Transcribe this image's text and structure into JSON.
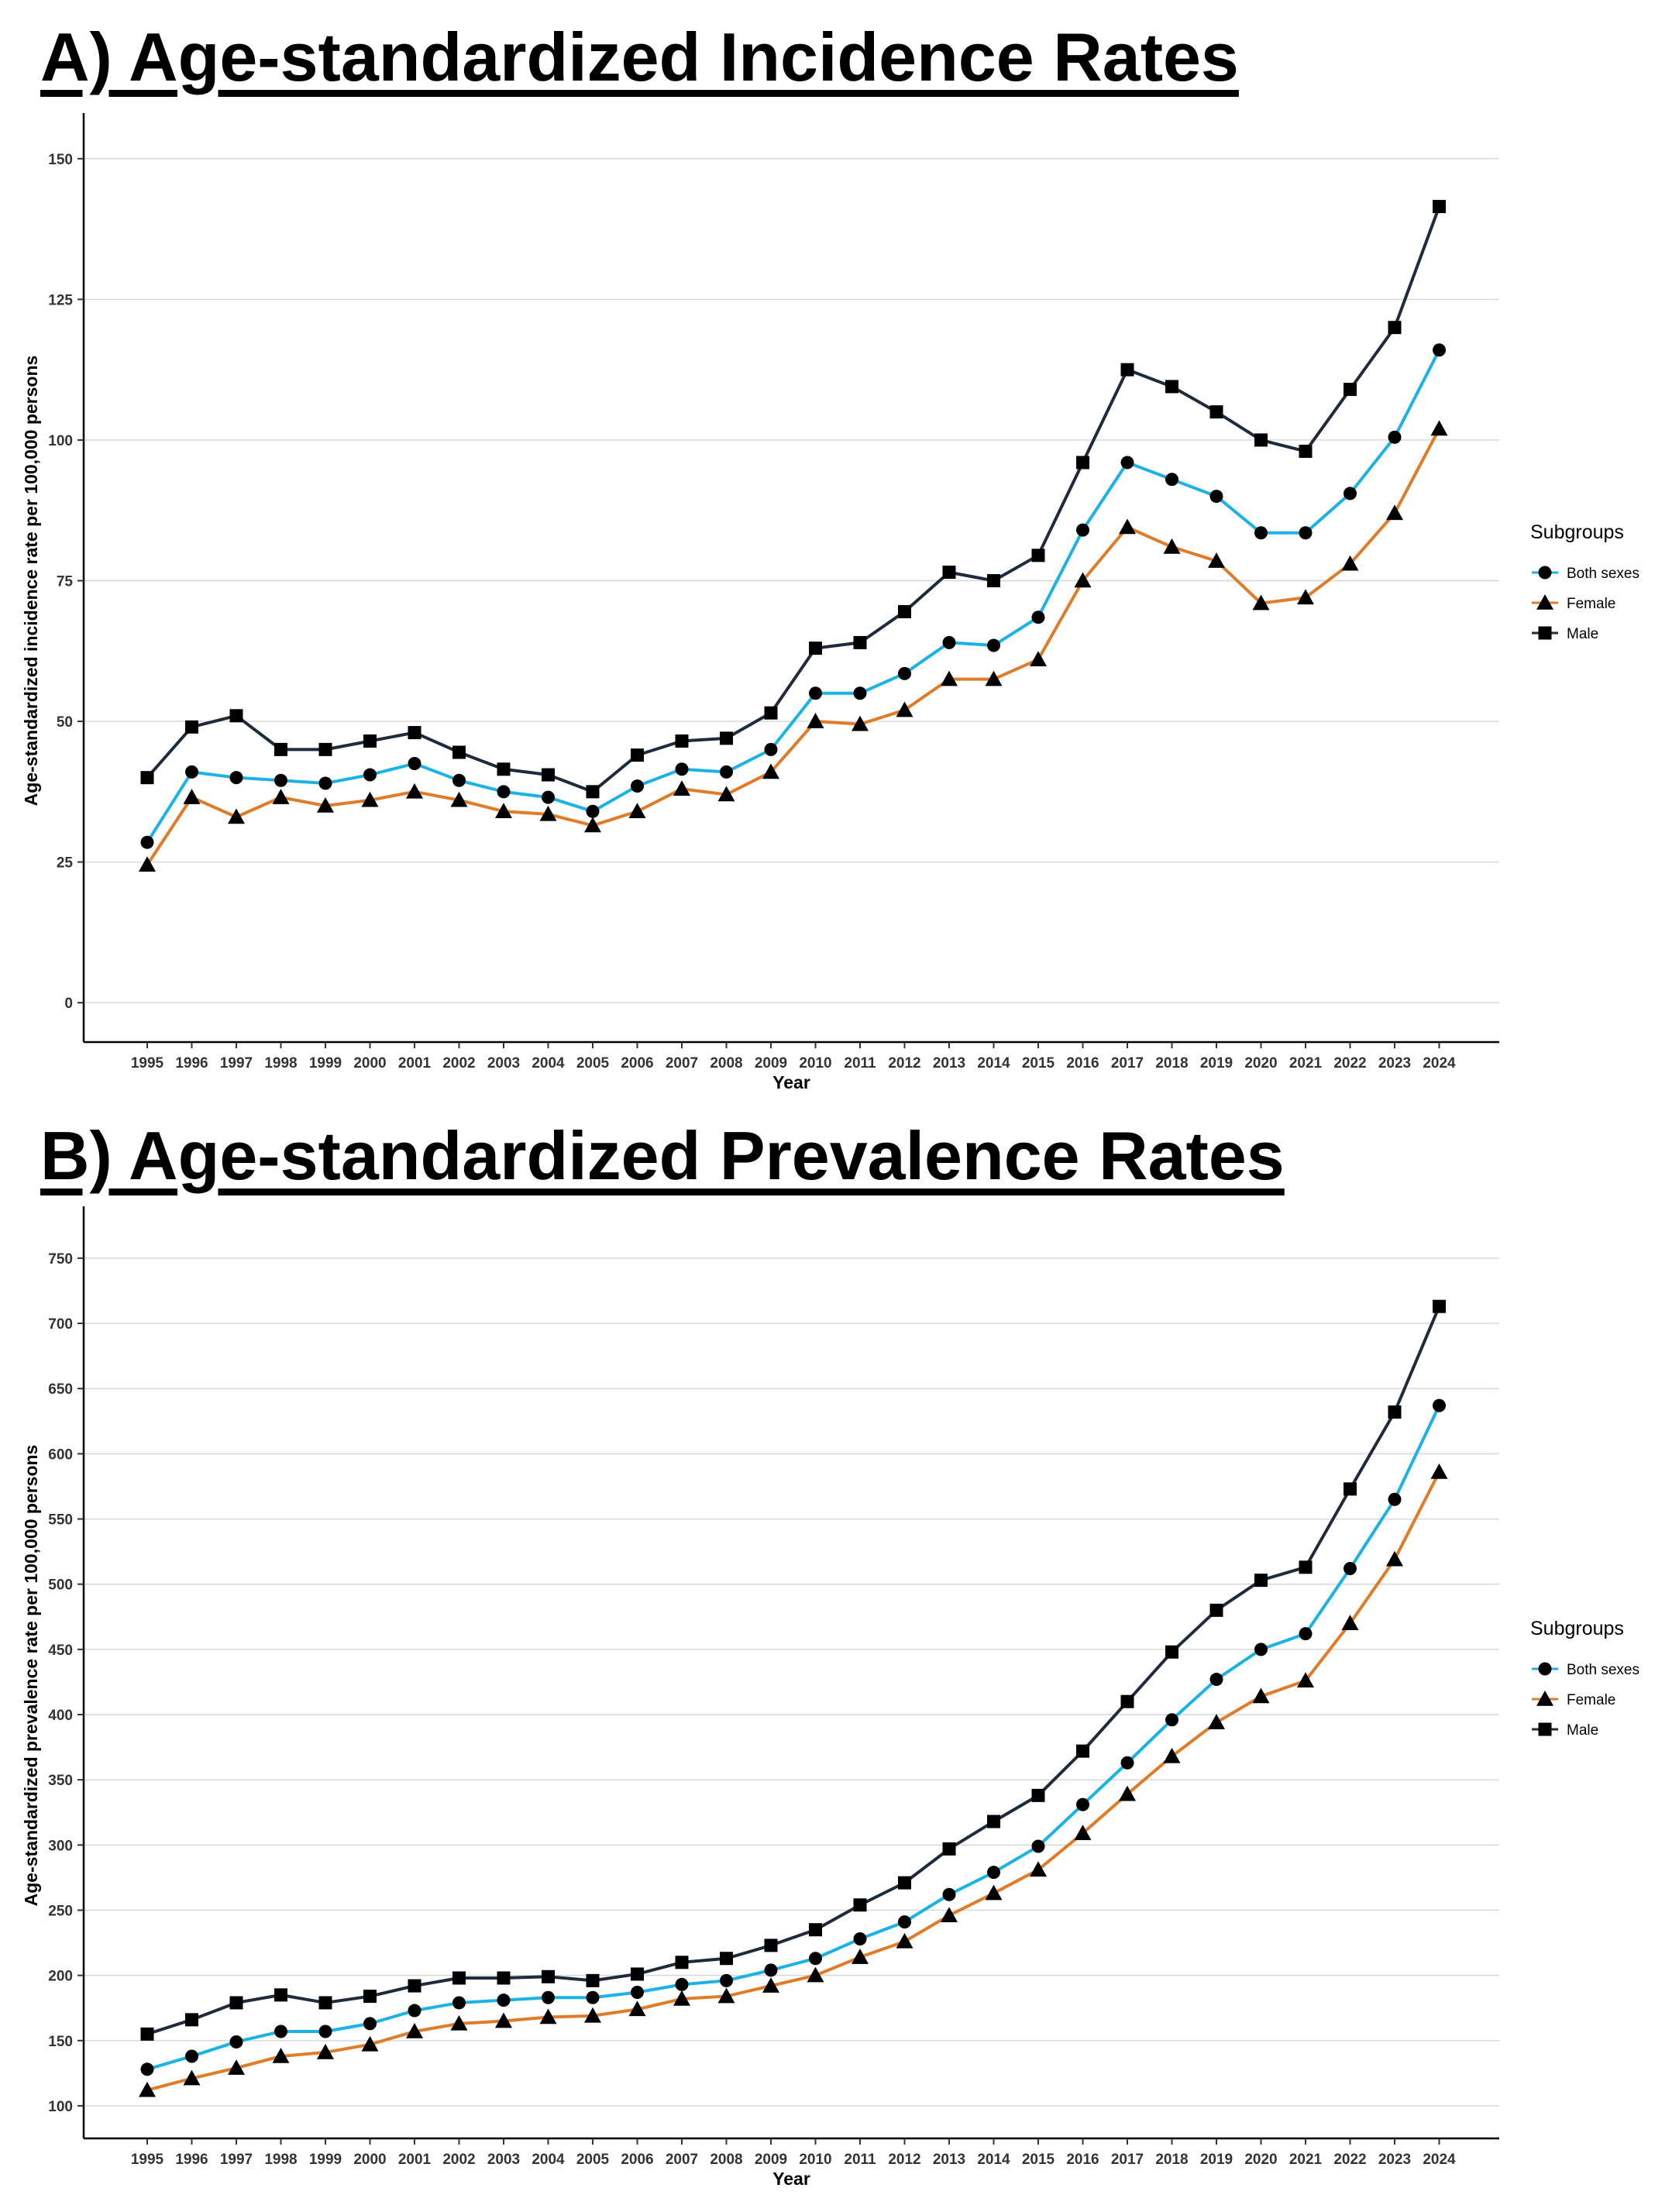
{
  "chart_data": [
    {
      "type": "line",
      "title": "A) Age-standardized Incidence Rates",
      "xlabel": "Year",
      "ylabel": "Age-standardized incidence rate per 100,000 persons",
      "ylim": [
        -7,
        157
      ],
      "yticks": [
        0,
        25,
        50,
        75,
        100,
        125,
        150
      ],
      "grid": true,
      "legend_title": "Subgroups",
      "legend_position": "right",
      "x": [
        "1995",
        "1996",
        "1997",
        "1998",
        "1999",
        "2000",
        "2001",
        "2002",
        "2003",
        "2004",
        "2005",
        "2006",
        "2007",
        "2008",
        "2009",
        "2010",
        "2011",
        "2012",
        "2013",
        "2014",
        "2015",
        "2016",
        "2017",
        "2018",
        "2019",
        "2020",
        "2021",
        "2022",
        "2023",
        "2024"
      ],
      "series": [
        {
          "name": "Both sexes",
          "color": "#1BB3E6",
          "marker": "circle",
          "values": [
            28.5,
            41,
            40,
            39.5,
            39,
            40.5,
            42.5,
            39.5,
            37.5,
            36.5,
            34,
            38.5,
            41.5,
            41,
            45,
            55,
            55,
            58.5,
            64,
            63.5,
            68.5,
            84,
            96,
            93,
            90,
            83.5,
            83.5,
            90.5,
            100.5,
            116
          ]
        },
        {
          "name": "Female",
          "color": "#E07B28",
          "marker": "triangle",
          "values": [
            24.5,
            36.5,
            33,
            36.5,
            35,
            36,
            37.5,
            36,
            34,
            33.5,
            31.5,
            34,
            38,
            37,
            41,
            50,
            49.5,
            52,
            57.5,
            57.5,
            61,
            75,
            84.5,
            81,
            78.5,
            71,
            72,
            78,
            87,
            102
          ]
        },
        {
          "name": "Male",
          "color": "#1E2B3D",
          "marker": "square",
          "values": [
            40,
            49,
            51,
            45,
            45,
            46.5,
            48,
            44.5,
            41.5,
            40.5,
            37.5,
            44,
            46.5,
            47,
            51.5,
            63,
            64,
            69.5,
            76.5,
            75,
            79.5,
            96,
            112.5,
            109.5,
            105,
            100,
            98,
            109,
            120,
            141.5
          ]
        }
      ]
    },
    {
      "type": "line",
      "title": "B) Age-standardized Prevalence Rates",
      "xlabel": "Year",
      "ylabel": "Age-standardized prevalence rate per 100,000 persons",
      "ylim": [
        75,
        785
      ],
      "yticks": [
        100,
        150,
        200,
        250,
        300,
        350,
        400,
        450,
        500,
        550,
        600,
        650,
        700,
        750
      ],
      "grid": true,
      "legend_title": "Subgroups",
      "legend_position": "right",
      "x": [
        "1995",
        "1996",
        "1997",
        "1998",
        "1999",
        "2000",
        "2001",
        "2002",
        "2003",
        "2004",
        "2005",
        "2006",
        "2007",
        "2008",
        "2009",
        "2010",
        "2011",
        "2012",
        "2013",
        "2014",
        "2015",
        "2016",
        "2017",
        "2018",
        "2019",
        "2020",
        "2021",
        "2022",
        "2023",
        "2024"
      ],
      "series": [
        {
          "name": "Both sexes",
          "color": "#1BB3E6",
          "marker": "circle",
          "values": [
            128,
            138,
            149,
            157,
            157,
            163,
            173,
            179,
            181,
            183,
            183,
            187,
            193,
            196,
            204,
            213,
            228,
            241,
            262,
            279,
            299,
            331,
            363,
            396,
            427,
            450,
            462,
            512,
            565,
            637
          ]
        },
        {
          "name": "Female",
          "color": "#E07B28",
          "marker": "triangle",
          "values": [
            112,
            121,
            129,
            138,
            141,
            147,
            157,
            163,
            165,
            168,
            169,
            174,
            182,
            184,
            192,
            200,
            214,
            226,
            246,
            263,
            281,
            309,
            339,
            368,
            394,
            414,
            426,
            470,
            519,
            586
          ]
        },
        {
          "name": "Male",
          "color": "#1E2B3D",
          "marker": "square",
          "values": [
            155,
            166,
            179,
            185,
            179,
            184,
            192,
            198,
            198,
            199,
            196,
            201,
            210,
            213,
            223,
            235,
            254,
            271,
            297,
            318,
            338,
            372,
            410,
            448,
            480,
            503,
            513,
            573,
            632,
            713
          ]
        }
      ]
    }
  ]
}
